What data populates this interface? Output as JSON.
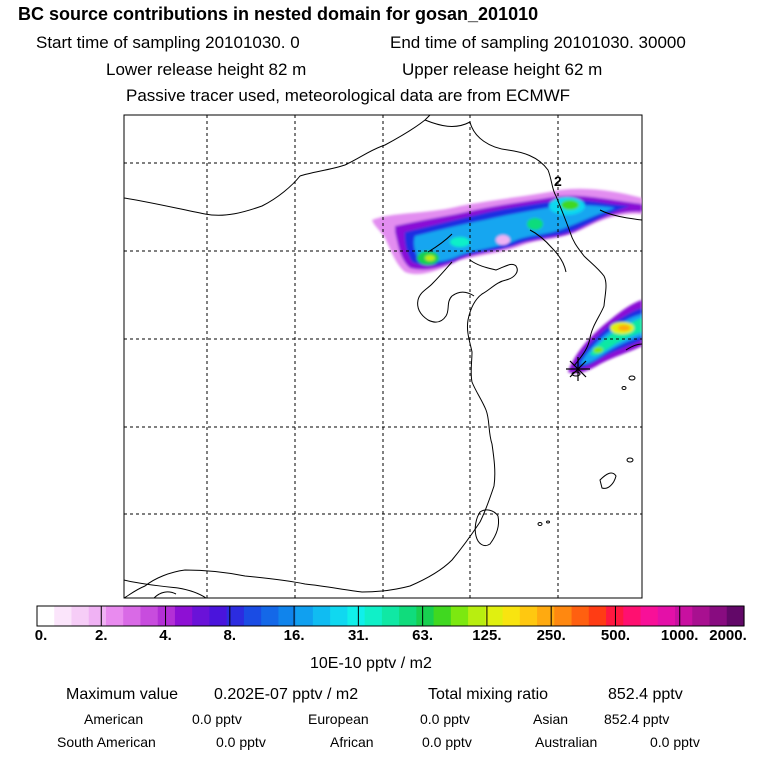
{
  "header": {
    "title": "BC  source contributions in nested domain for gosan_201010",
    "start_label": "Start time of sampling 20101030.     0",
    "end_label": "End time of sampling 20101030. 30000",
    "lower_label": "Lower release height   82 m",
    "upper_label": "Upper release height   62 m",
    "tracer_note": "Passive tracer used, meteorological data are from ECMWF"
  },
  "map": {
    "station_marker": "station-star-icon",
    "contour_label": "2"
  },
  "colorbar": {
    "colors": [
      "#ffffff",
      "#fbe5fb",
      "#f6cdf7",
      "#f0b2f4",
      "#e98bef",
      "#d96ae6",
      "#c84cde",
      "#b32fd6",
      "#8e10d4",
      "#6a12d8",
      "#4a14dc",
      "#2c2ce0",
      "#1a4ce4",
      "#1468e8",
      "#1084ec",
      "#10a0f0",
      "#10bcf2",
      "#10d8f0",
      "#10f0ea",
      "#10f0c8",
      "#10e8a4",
      "#10dc7c",
      "#18d050",
      "#40d820",
      "#7ce810",
      "#b8ee10",
      "#e0f010",
      "#f8e410",
      "#ffc810",
      "#ffaa10",
      "#ff8810",
      "#ff6010",
      "#ff3c14",
      "#ff1840",
      "#ff1070",
      "#f81098",
      "#e410a8",
      "#c810a0",
      "#a81090",
      "#880c80",
      "#620868"
    ],
    "ticks": [
      "0.",
      "2.",
      "4.",
      "8.",
      "16.",
      "31.",
      "63.",
      "125.",
      "250.",
      "500.",
      "1000.",
      "2000."
    ],
    "unit": "10E-10 pptv / m2"
  },
  "stats": {
    "max_label": "Maximum value",
    "max_value": "0.202E-07 pptv / m2",
    "total_label": "Total mixing ratio",
    "total_value": "852.4 pptv",
    "regions": [
      {
        "name": "American",
        "value": "0.0 pptv"
      },
      {
        "name": "European",
        "value": "0.0 pptv"
      },
      {
        "name": "Asian",
        "value": "852.4 pptv"
      },
      {
        "name": "South American",
        "value": "0.0 pptv"
      },
      {
        "name": "African",
        "value": "0.0 pptv"
      },
      {
        "name": "Australian",
        "value": "0.0 pptv"
      }
    ]
  }
}
